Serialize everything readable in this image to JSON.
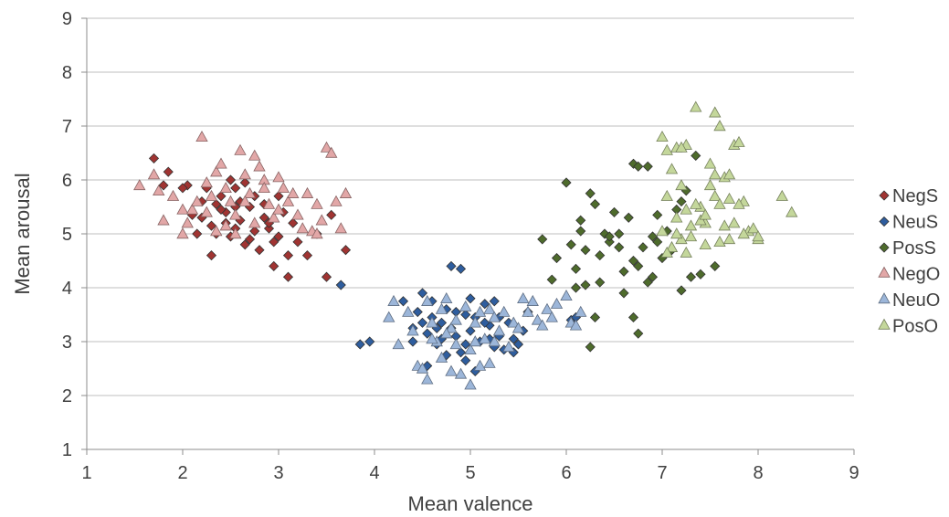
{
  "chart_data": {
    "type": "scatter",
    "title": "",
    "xlabel": "Mean valence",
    "ylabel": "Mean arousal",
    "xlim": [
      1,
      9
    ],
    "ylim": [
      1,
      9
    ],
    "xticks": [
      "1",
      "2",
      "3",
      "4",
      "5",
      "6",
      "7",
      "8",
      "9"
    ],
    "yticks": [
      "1",
      "2",
      "3",
      "4",
      "5",
      "6",
      "7",
      "8",
      "9"
    ],
    "grid": "horizontal",
    "legend_position": "right",
    "series": [
      {
        "name": "NegS",
        "marker": "diamond",
        "color": "#a03432",
        "points": [
          [
            1.7,
            6.4
          ],
          [
            1.85,
            6.15
          ],
          [
            2.05,
            5.9
          ],
          [
            1.8,
            5.9
          ],
          [
            2.25,
            5.85
          ],
          [
            2.35,
            5.55
          ],
          [
            2.5,
            6.0
          ],
          [
            2.55,
            5.5
          ],
          [
            2.65,
            5.95
          ],
          [
            2.45,
            5.4
          ],
          [
            2.2,
            5.3
          ],
          [
            2.15,
            5.0
          ],
          [
            2.3,
            5.15
          ],
          [
            2.6,
            5.25
          ],
          [
            2.7,
            5.5
          ],
          [
            2.75,
            5.05
          ],
          [
            2.85,
            5.3
          ],
          [
            2.9,
            5.1
          ],
          [
            2.95,
            4.85
          ],
          [
            2.65,
            4.8
          ],
          [
            2.5,
            4.95
          ],
          [
            2.3,
            4.6
          ],
          [
            2.1,
            5.35
          ],
          [
            2.4,
            5.7
          ],
          [
            2.6,
            5.6
          ],
          [
            2.8,
            4.7
          ],
          [
            3.0,
            4.95
          ],
          [
            3.05,
            5.4
          ],
          [
            3.15,
            5.2
          ],
          [
            3.2,
            4.85
          ],
          [
            3.1,
            4.6
          ],
          [
            3.3,
            4.6
          ],
          [
            2.95,
            4.4
          ],
          [
            3.1,
            4.2
          ],
          [
            3.5,
            4.2
          ],
          [
            3.7,
            4.7
          ],
          [
            3.55,
            5.35
          ],
          [
            3.4,
            5.0
          ],
          [
            2.55,
            5.85
          ],
          [
            2.4,
            5.45
          ],
          [
            2.0,
            5.85
          ],
          [
            2.2,
            5.6
          ],
          [
            2.75,
            5.7
          ],
          [
            2.85,
            5.55
          ],
          [
            3.0,
            5.7
          ],
          [
            2.35,
            5.0
          ],
          [
            2.45,
            5.2
          ],
          [
            2.7,
            4.9
          ],
          [
            2.55,
            5.1
          ],
          [
            2.9,
            5.2
          ]
        ]
      },
      {
        "name": "NeuS",
        "marker": "diamond",
        "color": "#2e5d9e",
        "points": [
          [
            3.65,
            4.05
          ],
          [
            3.85,
            2.95
          ],
          [
            3.95,
            3.0
          ],
          [
            4.3,
            3.75
          ],
          [
            4.4,
            3.25
          ],
          [
            4.45,
            3.55
          ],
          [
            4.55,
            3.15
          ],
          [
            4.6,
            3.45
          ],
          [
            4.65,
            2.95
          ],
          [
            4.7,
            3.35
          ],
          [
            4.75,
            3.6
          ],
          [
            4.8,
            4.4
          ],
          [
            4.9,
            4.35
          ],
          [
            4.85,
            3.1
          ],
          [
            4.9,
            2.8
          ],
          [
            4.95,
            3.5
          ],
          [
            5.0,
            3.2
          ],
          [
            5.05,
            2.45
          ],
          [
            4.95,
            2.65
          ],
          [
            5.1,
            3.0
          ],
          [
            5.15,
            3.7
          ],
          [
            5.2,
            3.3
          ],
          [
            5.25,
            3.75
          ],
          [
            5.3,
            3.1
          ],
          [
            5.35,
            2.85
          ],
          [
            5.4,
            3.35
          ],
          [
            5.45,
            3.05
          ],
          [
            5.5,
            2.95
          ],
          [
            5.55,
            3.2
          ],
          [
            5.6,
            3.55
          ],
          [
            4.5,
            3.9
          ],
          [
            4.6,
            3.75
          ],
          [
            4.7,
            3.05
          ],
          [
            4.8,
            3.25
          ],
          [
            4.55,
            2.55
          ],
          [
            4.95,
            2.95
          ],
          [
            5.05,
            3.45
          ],
          [
            5.2,
            3.05
          ],
          [
            5.3,
            3.45
          ],
          [
            5.45,
            2.8
          ],
          [
            4.75,
            2.75
          ],
          [
            4.85,
            3.55
          ],
          [
            4.65,
            3.25
          ],
          [
            5.15,
            3.35
          ],
          [
            4.4,
            3.0
          ],
          [
            6.05,
            3.4
          ],
          [
            6.1,
            3.45
          ],
          [
            4.5,
            3.35
          ],
          [
            5.0,
            3.8
          ],
          [
            5.25,
            2.9
          ]
        ]
      },
      {
        "name": "PosS",
        "marker": "diamond",
        "color": "#4e6b2c",
        "points": [
          [
            5.75,
            4.9
          ],
          [
            5.85,
            4.15
          ],
          [
            5.9,
            4.55
          ],
          [
            6.0,
            5.95
          ],
          [
            6.05,
            4.8
          ],
          [
            6.1,
            4.35
          ],
          [
            6.15,
            5.25
          ],
          [
            6.2,
            4.7
          ],
          [
            6.25,
            5.75
          ],
          [
            6.3,
            5.55
          ],
          [
            6.35,
            4.1
          ],
          [
            6.4,
            5.0
          ],
          [
            6.45,
            4.85
          ],
          [
            6.5,
            5.4
          ],
          [
            6.55,
            4.75
          ],
          [
            6.6,
            4.3
          ],
          [
            6.65,
            5.3
          ],
          [
            6.7,
            6.3
          ],
          [
            6.75,
            6.25
          ],
          [
            6.7,
            4.5
          ],
          [
            6.75,
            4.4
          ],
          [
            6.8,
            4.75
          ],
          [
            6.85,
            4.1
          ],
          [
            6.9,
            4.95
          ],
          [
            6.95,
            5.35
          ],
          [
            7.0,
            4.55
          ],
          [
            7.05,
            5.05
          ],
          [
            7.1,
            4.7
          ],
          [
            7.15,
            5.45
          ],
          [
            7.2,
            5.6
          ],
          [
            7.25,
            5.8
          ],
          [
            7.3,
            4.2
          ],
          [
            7.35,
            6.45
          ],
          [
            7.4,
            4.25
          ],
          [
            7.55,
            4.4
          ],
          [
            6.1,
            4.0
          ],
          [
            6.2,
            4.05
          ],
          [
            6.3,
            3.45
          ],
          [
            6.25,
            2.9
          ],
          [
            6.7,
            3.45
          ],
          [
            6.75,
            3.15
          ],
          [
            6.85,
            6.25
          ],
          [
            6.55,
            5.0
          ],
          [
            6.35,
            4.6
          ],
          [
            6.6,
            3.9
          ],
          [
            7.2,
            3.95
          ],
          [
            6.9,
            4.2
          ],
          [
            6.45,
            4.95
          ],
          [
            6.15,
            5.05
          ],
          [
            6.95,
            4.85
          ]
        ]
      },
      {
        "name": "NegO",
        "marker": "triangle",
        "color": "#e2a7a7",
        "points": [
          [
            1.55,
            5.9
          ],
          [
            1.7,
            6.1
          ],
          [
            1.75,
            5.8
          ],
          [
            1.8,
            5.25
          ],
          [
            1.9,
            5.7
          ],
          [
            2.0,
            5.45
          ],
          [
            2.05,
            5.2
          ],
          [
            2.1,
            5.45
          ],
          [
            2.2,
            6.8
          ],
          [
            2.25,
            5.95
          ],
          [
            2.3,
            5.7
          ],
          [
            2.35,
            6.15
          ],
          [
            2.4,
            6.3
          ],
          [
            2.45,
            5.85
          ],
          [
            2.5,
            5.6
          ],
          [
            2.55,
            5.35
          ],
          [
            2.6,
            6.55
          ],
          [
            2.65,
            6.1
          ],
          [
            2.7,
            5.75
          ],
          [
            2.75,
            6.45
          ],
          [
            2.8,
            6.25
          ],
          [
            2.85,
            6.0
          ],
          [
            2.9,
            5.55
          ],
          [
            2.95,
            5.3
          ],
          [
            3.0,
            6.05
          ],
          [
            3.05,
            5.85
          ],
          [
            3.1,
            5.6
          ],
          [
            3.15,
            5.75
          ],
          [
            3.2,
            5.35
          ],
          [
            3.25,
            5.1
          ],
          [
            3.3,
            5.75
          ],
          [
            3.35,
            5.05
          ],
          [
            3.4,
            5.55
          ],
          [
            3.45,
            5.25
          ],
          [
            3.5,
            6.6
          ],
          [
            3.55,
            6.5
          ],
          [
            3.6,
            5.6
          ],
          [
            3.65,
            5.1
          ],
          [
            3.7,
            5.75
          ],
          [
            2.15,
            5.6
          ],
          [
            2.35,
            5.05
          ],
          [
            2.55,
            5.0
          ],
          [
            2.75,
            5.2
          ],
          [
            2.25,
            5.4
          ],
          [
            2.65,
            5.6
          ],
          [
            2.85,
            5.85
          ],
          [
            2.45,
            5.15
          ],
          [
            3.0,
            5.45
          ],
          [
            2.0,
            5.0
          ],
          [
            3.4,
            5.0
          ]
        ]
      },
      {
        "name": "NeuO",
        "marker": "triangle",
        "color": "#9cb6d9",
        "points": [
          [
            4.15,
            3.45
          ],
          [
            4.2,
            3.75
          ],
          [
            4.25,
            2.95
          ],
          [
            4.35,
            3.55
          ],
          [
            4.4,
            3.2
          ],
          [
            4.45,
            2.55
          ],
          [
            4.5,
            2.5
          ],
          [
            4.55,
            3.75
          ],
          [
            4.55,
            2.3
          ],
          [
            4.6,
            3.35
          ],
          [
            4.65,
            3.0
          ],
          [
            4.7,
            3.6
          ],
          [
            4.7,
            2.7
          ],
          [
            4.75,
            3.8
          ],
          [
            4.8,
            3.25
          ],
          [
            4.8,
            2.45
          ],
          [
            4.85,
            2.95
          ],
          [
            4.9,
            2.4
          ],
          [
            4.95,
            3.65
          ],
          [
            5.0,
            2.2
          ],
          [
            5.0,
            2.85
          ],
          [
            5.05,
            3.35
          ],
          [
            5.1,
            3.55
          ],
          [
            5.1,
            2.55
          ],
          [
            5.15,
            3.05
          ],
          [
            5.2,
            3.6
          ],
          [
            5.25,
            3.45
          ],
          [
            5.3,
            3.2
          ],
          [
            5.35,
            3.55
          ],
          [
            5.4,
            2.9
          ],
          [
            5.45,
            3.35
          ],
          [
            5.5,
            3.25
          ],
          [
            5.55,
            3.8
          ],
          [
            5.6,
            3.55
          ],
          [
            5.65,
            3.75
          ],
          [
            5.7,
            3.4
          ],
          [
            5.75,
            3.3
          ],
          [
            5.8,
            3.6
          ],
          [
            5.85,
            3.45
          ],
          [
            5.9,
            3.7
          ],
          [
            6.0,
            3.85
          ],
          [
            6.05,
            3.35
          ],
          [
            6.1,
            3.3
          ],
          [
            6.15,
            3.55
          ],
          [
            4.85,
            3.4
          ],
          [
            4.6,
            3.05
          ],
          [
            5.05,
            3.0
          ],
          [
            5.25,
            3.0
          ],
          [
            4.75,
            3.15
          ],
          [
            5.2,
            2.6
          ]
        ]
      },
      {
        "name": "PosO",
        "marker": "triangle",
        "color": "#c4d79b",
        "points": [
          [
            7.0,
            6.8
          ],
          [
            7.05,
            6.55
          ],
          [
            7.1,
            6.2
          ],
          [
            7.15,
            6.6
          ],
          [
            7.2,
            5.9
          ],
          [
            7.25,
            6.65
          ],
          [
            7.35,
            7.35
          ],
          [
            7.4,
            5.5
          ],
          [
            7.45,
            5.2
          ],
          [
            7.55,
            7.25
          ],
          [
            7.6,
            7.0
          ],
          [
            7.65,
            6.05
          ],
          [
            7.7,
            5.65
          ],
          [
            7.75,
            6.65
          ],
          [
            7.8,
            6.7
          ],
          [
            7.85,
            5.6
          ],
          [
            7.9,
            5.05
          ],
          [
            8.0,
            4.9
          ],
          [
            8.25,
            5.7
          ],
          [
            8.35,
            5.4
          ],
          [
            7.05,
            5.7
          ],
          [
            7.15,
            5.3
          ],
          [
            7.2,
            4.9
          ],
          [
            7.3,
            5.15
          ],
          [
            7.35,
            5.55
          ],
          [
            7.45,
            4.8
          ],
          [
            7.5,
            5.9
          ],
          [
            7.55,
            5.7
          ],
          [
            7.6,
            5.55
          ],
          [
            7.65,
            5.15
          ],
          [
            7.7,
            4.9
          ],
          [
            7.75,
            5.2
          ],
          [
            7.8,
            5.55
          ],
          [
            7.85,
            5.0
          ],
          [
            7.95,
            5.1
          ],
          [
            8.0,
            4.95
          ],
          [
            7.1,
            4.75
          ],
          [
            7.25,
            4.65
          ],
          [
            7.4,
            5.25
          ],
          [
            7.5,
            6.3
          ],
          [
            7.0,
            5.05
          ],
          [
            7.05,
            4.65
          ],
          [
            7.15,
            5.0
          ],
          [
            7.3,
            4.95
          ],
          [
            7.45,
            5.35
          ],
          [
            7.6,
            4.85
          ],
          [
            7.7,
            6.1
          ],
          [
            7.55,
            6.1
          ],
          [
            7.25,
            5.45
          ],
          [
            7.2,
            6.6
          ]
        ]
      }
    ]
  }
}
